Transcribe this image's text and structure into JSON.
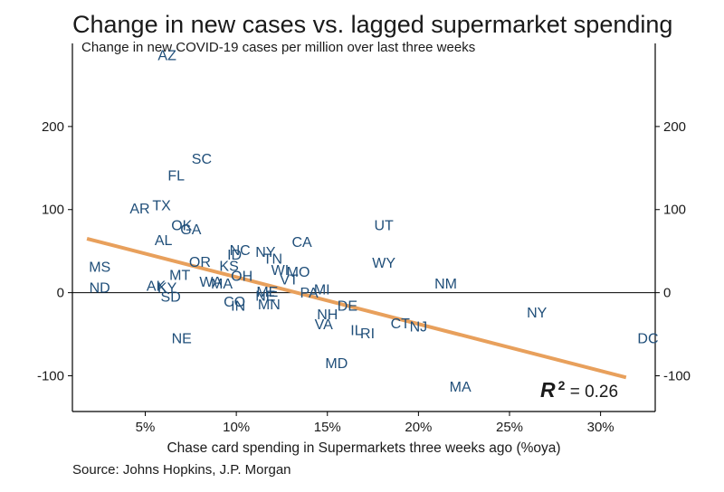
{
  "chart_data": {
    "type": "scatter",
    "title": "Change in new cases vs. lagged supermarket spending",
    "subtitle": "Change in new COVID-19 cases per million over last three weeks",
    "xlabel": "Chase card spending in Supermarkets three weeks ago (%oya)",
    "source": "Source:  Johns Hopkins, J.P. Morgan",
    "xlim": [
      1,
      33
    ],
    "ylim": [
      -143,
      300
    ],
    "x_ticks": [
      5,
      10,
      15,
      20,
      25,
      30
    ],
    "x_tick_labels": [
      "5%",
      "10%",
      "15%",
      "20%",
      "25%",
      "30%"
    ],
    "y_ticks": [
      -100,
      0,
      100,
      200
    ],
    "y_tick_labels": [
      "-100",
      "0",
      "100",
      "200"
    ],
    "right_axis_mirrored": true,
    "zero_line": true,
    "grid": false,
    "trendline": {
      "x": [
        1.8,
        31.4
      ],
      "y": [
        65,
        -102
      ],
      "color": "#e8a05c"
    },
    "r_squared": {
      "symbol": "R",
      "exponent": "2",
      "text": " = 0.26"
    },
    "marker_color": "#1f4e79",
    "points": [
      {
        "label": "AZ",
        "x": 6.2,
        "y": 285
      },
      {
        "label": "SC",
        "x": 8.1,
        "y": 160
      },
      {
        "label": "FL",
        "x": 6.7,
        "y": 140
      },
      {
        "label": "AR",
        "x": 4.7,
        "y": 100
      },
      {
        "label": "TX",
        "x": 5.9,
        "y": 104
      },
      {
        "label": "OK",
        "x": 7.0,
        "y": 80
      },
      {
        "label": "GA",
        "x": 7.5,
        "y": 75
      },
      {
        "label": "AL",
        "x": 6.0,
        "y": 62
      },
      {
        "label": "NC",
        "x": 10.2,
        "y": 50
      },
      {
        "label": "ID",
        "x": 9.9,
        "y": 45
      },
      {
        "label": "NY",
        "x": 11.6,
        "y": 48
      },
      {
        "label": "TN",
        "x": 12.0,
        "y": 40
      },
      {
        "label": "CA",
        "x": 13.6,
        "y": 60
      },
      {
        "label": "UT",
        "x": 18.1,
        "y": 80
      },
      {
        "label": "WY",
        "x": 18.1,
        "y": 35
      },
      {
        "label": "MS",
        "x": 2.5,
        "y": 30
      },
      {
        "label": "OR",
        "x": 8.0,
        "y": 36
      },
      {
        "label": "KS",
        "x": 9.6,
        "y": 31
      },
      {
        "label": "OH",
        "x": 10.3,
        "y": 19
      },
      {
        "label": "WI",
        "x": 12.4,
        "y": 26
      },
      {
        "label": "MO",
        "x": 13.4,
        "y": 24
      },
      {
        "label": "VT",
        "x": 12.9,
        "y": 15
      },
      {
        "label": "MT",
        "x": 6.9,
        "y": 20
      },
      {
        "label": "WA",
        "x": 8.6,
        "y": 12
      },
      {
        "label": "MA",
        "x": 9.2,
        "y": 10
      },
      {
        "label": "AK",
        "x": 5.6,
        "y": 7
      },
      {
        "label": "KY",
        "x": 6.2,
        "y": 5
      },
      {
        "label": "ND",
        "x": 2.5,
        "y": 5
      },
      {
        "label": "SD",
        "x": 6.4,
        "y": -6
      },
      {
        "label": "NM",
        "x": 21.5,
        "y": 10
      },
      {
        "label": "PA",
        "x": 14.0,
        "y": -1
      },
      {
        "label": "MI",
        "x": 14.7,
        "y": 3
      },
      {
        "label": "CO",
        "x": 9.9,
        "y": -12
      },
      {
        "label": "NE",
        "x": 11.6,
        "y": -5
      },
      {
        "label": "ME",
        "x": 11.7,
        "y": 0
      },
      {
        "label": "IN",
        "x": 10.1,
        "y": -17
      },
      {
        "label": "MN",
        "x": 11.8,
        "y": -15
      },
      {
        "label": "DE",
        "x": 16.1,
        "y": -17
      },
      {
        "label": "NH",
        "x": 15.0,
        "y": -27
      },
      {
        "label": "VA",
        "x": 14.8,
        "y": -39
      },
      {
        "label": "NY",
        "x": 26.5,
        "y": -25
      },
      {
        "label": "CT",
        "x": 19.0,
        "y": -38
      },
      {
        "label": "NJ",
        "x": 20.0,
        "y": -42
      },
      {
        "label": "IL",
        "x": 16.6,
        "y": -46
      },
      {
        "label": "RI",
        "x": 17.2,
        "y": -50
      },
      {
        "label": "NE",
        "x": 7.0,
        "y": -56
      },
      {
        "label": "DC",
        "x": 32.6,
        "y": -56
      },
      {
        "label": "MD",
        "x": 15.5,
        "y": -86
      },
      {
        "label": "MA",
        "x": 22.3,
        "y": -114
      }
    ]
  }
}
